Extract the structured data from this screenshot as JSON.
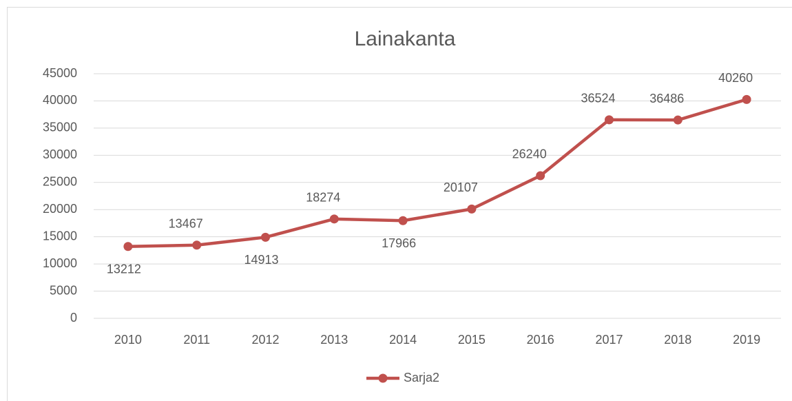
{
  "chart_data": {
    "type": "line",
    "title": "Lainakanta",
    "categories": [
      "2010",
      "2011",
      "2012",
      "2013",
      "2014",
      "2015",
      "2016",
      "2017",
      "2018",
      "2019"
    ],
    "series": [
      {
        "name": "Sarja2",
        "color": "#c0504d",
        "values": [
          13212,
          13467,
          14913,
          18274,
          17966,
          20107,
          26240,
          36524,
          36486,
          40260
        ]
      }
    ],
    "ylim": [
      0,
      45000
    ],
    "yticks": [
      0,
      5000,
      10000,
      15000,
      20000,
      25000,
      30000,
      35000,
      40000,
      45000
    ],
    "grid": true,
    "legend": "bottom"
  }
}
